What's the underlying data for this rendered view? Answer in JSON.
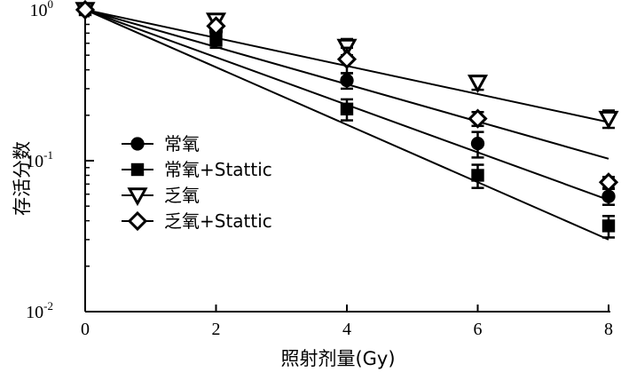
{
  "chart_data": {
    "type": "scatter",
    "xlabel": "照射剂量(Gy)",
    "ylabel": "存活分数",
    "y_scale": "log",
    "xlim": [
      0,
      8
    ],
    "ylim": [
      0.01,
      1
    ],
    "x_ticks": [
      {
        "value": 0,
        "label": "0"
      },
      {
        "value": 2,
        "label": "2"
      },
      {
        "value": 4,
        "label": "4"
      },
      {
        "value": 6,
        "label": "6"
      },
      {
        "value": 8,
        "label": "8"
      }
    ],
    "y_ticks": [
      {
        "value": 1,
        "base": "10",
        "exp": "0"
      },
      {
        "value": 0.1,
        "base": "10",
        "exp": "-1"
      },
      {
        "value": 0.01,
        "base": "10",
        "exp": "-2"
      }
    ],
    "legend_position": "middle-left",
    "series": [
      {
        "name": "常氧",
        "marker": "circle-filled",
        "x": [
          0,
          2,
          4,
          6,
          8
        ],
        "y": [
          1.0,
          0.72,
          0.34,
          0.13,
          0.058
        ],
        "err": [
          0.04,
          0.05,
          0.04,
          0.025,
          0.007
        ],
        "fit_end": 0.055
      },
      {
        "name": "常氧+Stattic",
        "marker": "square-filled",
        "x": [
          0,
          2,
          4,
          6,
          8
        ],
        "y": [
          1.0,
          0.63,
          0.22,
          0.08,
          0.037
        ],
        "err": [
          0.04,
          0.07,
          0.035,
          0.014,
          0.006
        ],
        "fit_end": 0.03
      },
      {
        "name": "乏氧",
        "marker": "triangle-down-open",
        "x": [
          0,
          2,
          4,
          6,
          8
        ],
        "y": [
          1.0,
          0.85,
          0.57,
          0.33,
          0.19
        ],
        "err": [
          0.04,
          0.04,
          0.07,
          0.035,
          0.025
        ],
        "fit_end": 0.18
      },
      {
        "name": "乏氧+Stattic",
        "marker": "diamond-open",
        "x": [
          0,
          2,
          4,
          6,
          8
        ],
        "y": [
          1.0,
          0.78,
          0.47,
          0.19,
          0.072
        ],
        "err": [
          0.04,
          0.04,
          0.09,
          0.02,
          0.006
        ],
        "fit_end": 0.103
      }
    ]
  }
}
